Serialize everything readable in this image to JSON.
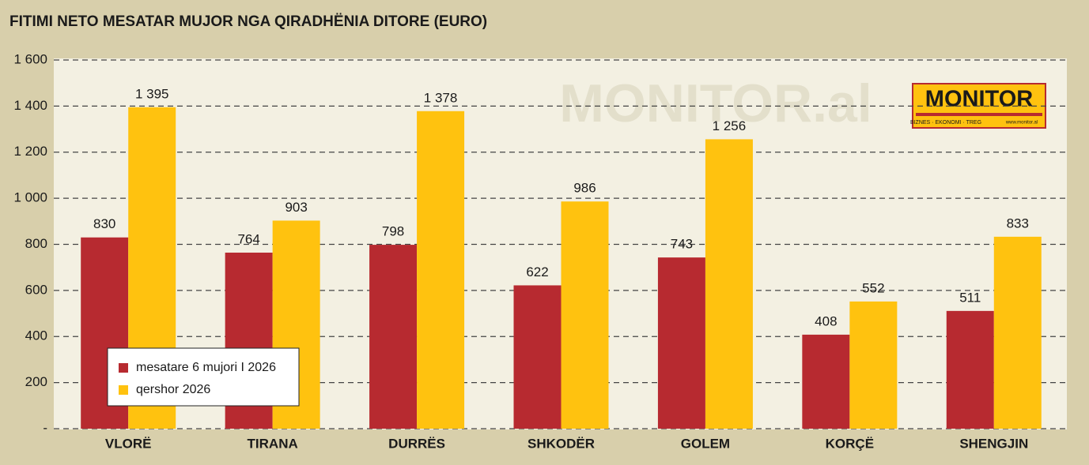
{
  "chart_data": {
    "type": "bar",
    "title": "FITIMI NETO MESATAR MUJOR NGA QIRADHËNIA DITORE (EURO)",
    "watermark": "MONITOR.al",
    "logo": {
      "name": "MONITOR",
      "tagline": "BIZNES · EKONOMI · TREG",
      "url": "www.monitor.al"
    },
    "categories": [
      "VLORË",
      "TIRANA",
      "DURRËS",
      "SHKODËR",
      "GOLEM",
      "KORÇË",
      "SHENGJIN"
    ],
    "series": [
      {
        "name": "mesatare 6 mujori I 2026",
        "color": "#b72a30",
        "values": [
          830,
          764,
          798,
          622,
          743,
          408,
          511
        ],
        "value_labels": [
          "830",
          "764",
          "798",
          "622",
          "743",
          "408",
          "511"
        ]
      },
      {
        "name": "qershor 2026",
        "color": "#ffc20f",
        "values": [
          1395,
          903,
          1378,
          986,
          1256,
          552,
          833
        ],
        "value_labels": [
          "1 395",
          "903",
          "1 378",
          "986",
          "1 256",
          "552",
          "833"
        ]
      }
    ],
    "ylim": [
      0,
      1600
    ],
    "yticks": [
      {
        "value": 0,
        "label": "-"
      },
      200,
      400,
      600,
      800,
      {
        "value": 1000,
        "label": "1 000"
      },
      {
        "value": 1200,
        "label": "1 200"
      },
      {
        "value": 1400,
        "label": "1 400"
      },
      {
        "value": 1600,
        "label": "1 600"
      }
    ],
    "grid": true,
    "legend": "lower-left"
  }
}
